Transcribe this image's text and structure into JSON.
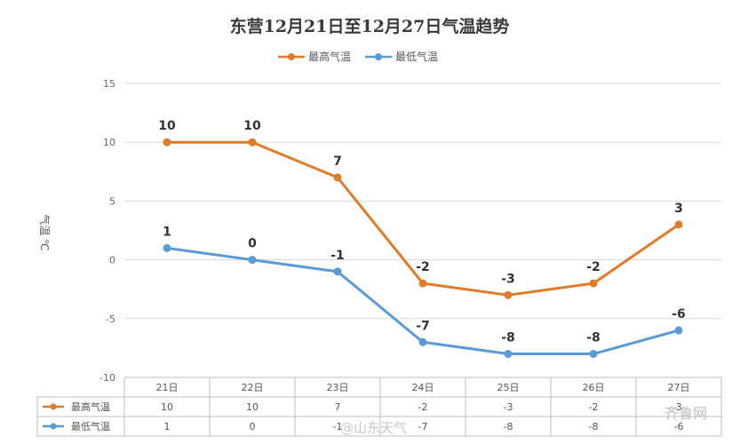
{
  "chart_data": {
    "type": "line",
    "title": "东营12月21日至12月27日气温趋势",
    "ylabel": "气温 ℃",
    "xlabel": "",
    "categories": [
      "21日",
      "22日",
      "23日",
      "24日",
      "25日",
      "26日",
      "27日"
    ],
    "ylim": [
      -10,
      15
    ],
    "yticks": [
      15,
      10,
      5,
      0,
      -5,
      -10
    ],
    "grid": true,
    "legend_position": "top-center",
    "series": [
      {
        "name": "最高气温",
        "color": "#e07b2a",
        "values": [
          10,
          10,
          7,
          -2,
          -3,
          -2,
          3
        ]
      },
      {
        "name": "最低气温",
        "color": "#5b9bd5",
        "values": [
          1,
          0,
          -1,
          -7,
          -8,
          -8,
          -6
        ]
      }
    ],
    "table": {
      "rows": [
        {
          "label": "最高气温",
          "values": [
            "10",
            "10",
            "7",
            "-2",
            "-3",
            "-2",
            "3"
          ]
        },
        {
          "label": "最低气温",
          "values": [
            "1",
            "0",
            "-1",
            "-7",
            "-8",
            "-8",
            "-6"
          ]
        }
      ]
    }
  },
  "watermarks": {
    "weibo": "@山东天气",
    "site": "齐鲁网"
  }
}
